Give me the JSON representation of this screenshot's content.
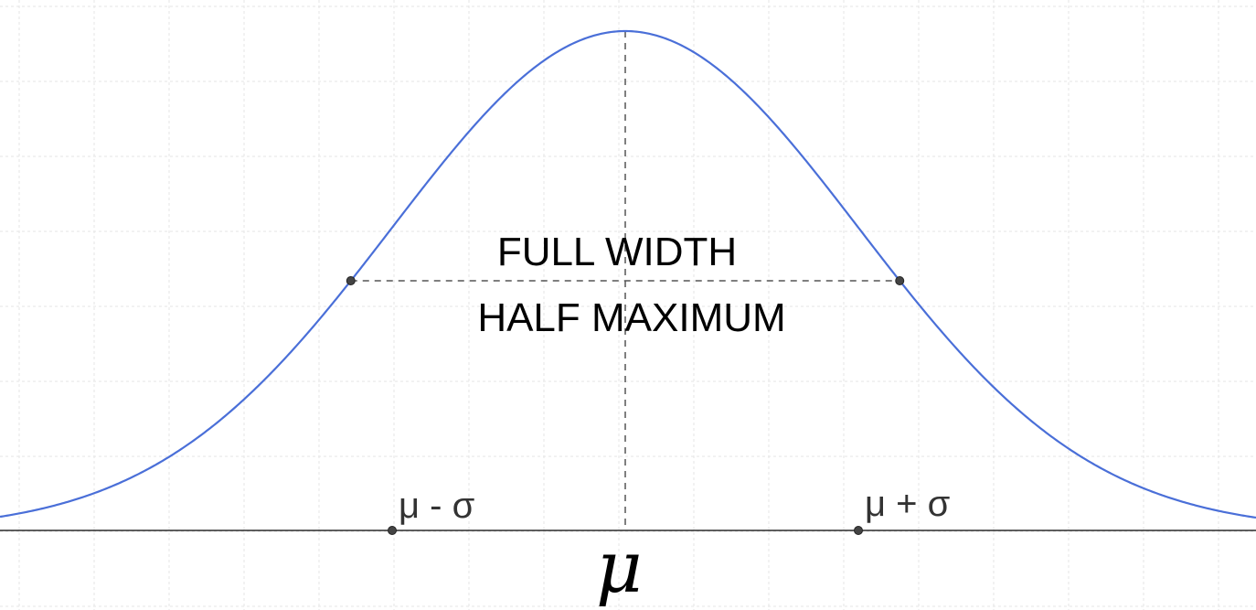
{
  "diagram": {
    "caption_line_1": "FULL WIDTH",
    "caption_line_2": "HALF MAXIMUM",
    "labels": {
      "mu_minus_sigma": "μ - σ",
      "mu_plus_sigma": "μ + σ",
      "mu": "μ"
    },
    "curve": {
      "type": "gaussian",
      "mean": 0,
      "sigma": 1,
      "color": "#4a6fd8"
    },
    "colors": {
      "grid": "#e6e6e6",
      "axis": "#000000",
      "guide": "#555555",
      "point_fill": "#444444",
      "curve": "#4a6fd8"
    }
  }
}
